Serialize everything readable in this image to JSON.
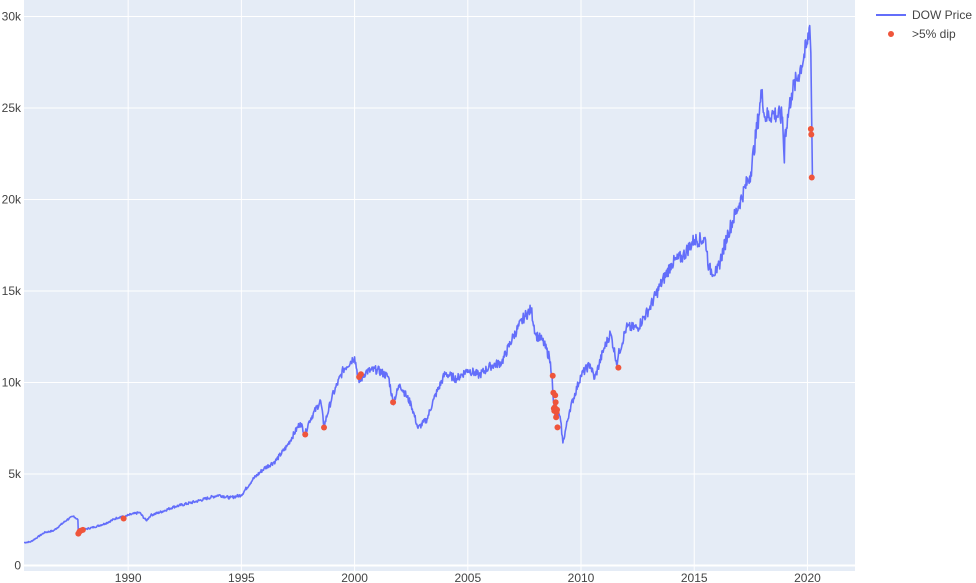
{
  "chart_data": {
    "type": "line",
    "title": "",
    "xlabel": "",
    "ylabel": "",
    "xlim": [
      1985.4,
      2022.1
    ],
    "ylim": [
      -300,
      30900
    ],
    "x_ticks": [
      {
        "value": 1990,
        "label": "1990"
      },
      {
        "value": 1995,
        "label": "1995"
      },
      {
        "value": 2000,
        "label": "2000"
      },
      {
        "value": 2005,
        "label": "2005"
      },
      {
        "value": 2010,
        "label": "2010"
      },
      {
        "value": 2015,
        "label": "2015"
      },
      {
        "value": 2020,
        "label": "2020"
      }
    ],
    "y_ticks": [
      {
        "value": 0,
        "label": "0"
      },
      {
        "value": 5000,
        "label": "5k"
      },
      {
        "value": 10000,
        "label": "10k"
      },
      {
        "value": 15000,
        "label": "15k"
      },
      {
        "value": 20000,
        "label": "20k"
      },
      {
        "value": 25000,
        "label": "25k"
      },
      {
        "value": 30000,
        "label": "30k"
      }
    ],
    "grid": true,
    "legend_position": "top-right",
    "colors": {
      "plot_background": "#e5ecf6",
      "gridline": "#ffffff",
      "zeroline": "#ffffff"
    },
    "series": [
      {
        "name": "DOW Price",
        "mode": "line",
        "color": "#636efa",
        "x": [
          1985.4,
          1985.7,
          1986.0,
          1986.3,
          1986.7,
          1987.0,
          1987.3,
          1987.6,
          1987.78,
          1987.8,
          1987.85,
          1988.0,
          1988.5,
          1989.0,
          1989.5,
          1989.75,
          1989.8,
          1990.0,
          1990.5,
          1990.8,
          1991.0,
          1991.5,
          1992.0,
          1993.0,
          1994.0,
          1994.5,
          1995.0,
          1995.5,
          1996.0,
          1996.5,
          1997.0,
          1997.6,
          1997.82,
          1998.0,
          1998.5,
          1998.65,
          1999.0,
          1999.5,
          2000.0,
          2000.2,
          2000.5,
          2001.0,
          2001.5,
          2001.7,
          2002.0,
          2002.5,
          2002.8,
          2003.2,
          2003.5,
          2004.0,
          2004.5,
          2005.0,
          2005.5,
          2006.0,
          2006.5,
          2007.0,
          2007.5,
          2007.8,
          2008.0,
          2008.3,
          2008.6,
          2008.72,
          2008.78,
          2008.85,
          2008.95,
          2009.1,
          2009.2,
          2009.5,
          2010.0,
          2010.4,
          2010.6,
          2011.0,
          2011.3,
          2011.6,
          2011.65,
          2012.0,
          2012.5,
          2013.0,
          2013.5,
          2014.0,
          2014.5,
          2015.0,
          2015.5,
          2015.65,
          2016.0,
          2016.5,
          2017.0,
          2017.5,
          2018.0,
          2018.1,
          2018.5,
          2018.9,
          2018.98,
          2019.0,
          2019.3,
          2019.6,
          2020.0,
          2020.1,
          2020.15,
          2020.18,
          2020.2,
          2020.22
        ],
        "y": [
          1250,
          1300,
          1550,
          1800,
          1900,
          2200,
          2500,
          2700,
          2500,
          1750,
          1900,
          1950,
          2100,
          2300,
          2600,
          2700,
          2600,
          2750,
          2900,
          2450,
          2750,
          2950,
          3200,
          3500,
          3850,
          3700,
          3850,
          4700,
          5300,
          5700,
          6500,
          7800,
          7200,
          7900,
          9000,
          7600,
          9200,
          10700,
          11400,
          10000,
          10600,
          10700,
          10300,
          8900,
          9900,
          8800,
          7500,
          8000,
          9100,
          10500,
          10200,
          10700,
          10400,
          10900,
          11100,
          12500,
          13600,
          14000,
          12600,
          12300,
          11400,
          10400,
          9000,
          8200,
          8500,
          7900,
          6700,
          8500,
          10400,
          11000,
          10200,
          11800,
          12700,
          11000,
          11500,
          13000,
          13000,
          14000,
          15300,
          16500,
          16900,
          17800,
          17800,
          16200,
          16000,
          18200,
          19800,
          21500,
          26000,
          24500,
          24700,
          24500,
          22000,
          23500,
          25800,
          26800,
          28500,
          29500,
          28000,
          25000,
          23200,
          21200
        ]
      },
      {
        "name": ">5% dip",
        "mode": "markers",
        "color": "#ef553b",
        "x": [
          1987.8,
          1987.85,
          1987.9,
          1988.0,
          1989.8,
          1997.82,
          1998.65,
          2000.2,
          2000.28,
          2001.7,
          2008.75,
          2008.78,
          2008.8,
          2008.82,
          2008.84,
          2008.86,
          2008.88,
          2008.9,
          2008.92,
          2008.94,
          2008.96,
          2011.65,
          2020.15,
          2020.17,
          2020.19
        ],
        "y": [
          1740,
          1850,
          1900,
          1950,
          2570,
          7160,
          7540,
          10300,
          10450,
          8920,
          10370,
          9440,
          8580,
          8450,
          8640,
          9300,
          8920,
          8100,
          8380,
          8510,
          7550,
          10810,
          23850,
          23550,
          21200
        ]
      }
    ]
  }
}
